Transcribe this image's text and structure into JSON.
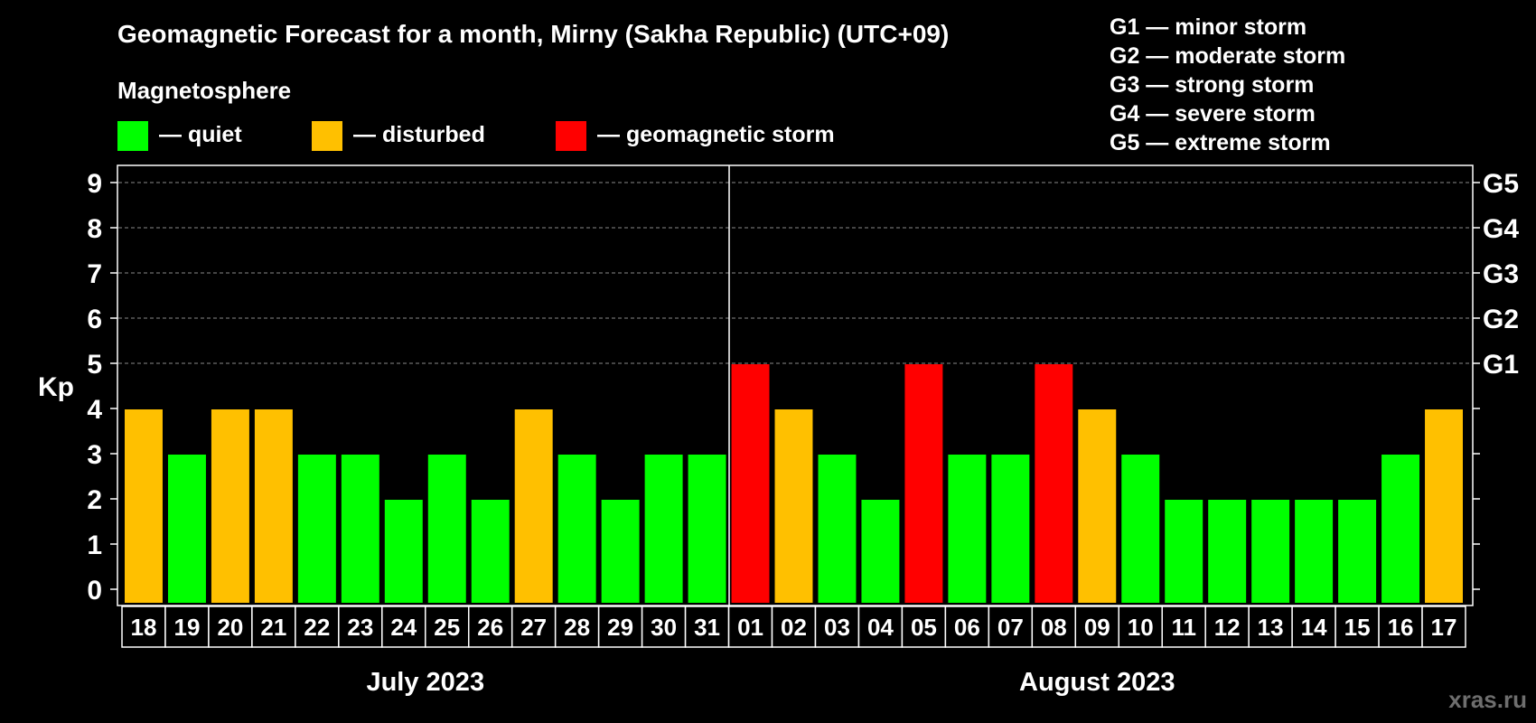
{
  "chart_data": {
    "type": "bar",
    "title": "Geomagnetic Forecast for a month, Mirny (Sakha Republic) (UTC+09)",
    "subtitle": "Magnetosphere",
    "ylabel": "Kp",
    "ylim": [
      0,
      9
    ],
    "yticks": [
      "0",
      "1",
      "2",
      "3",
      "4",
      "5",
      "6",
      "7",
      "8",
      "9"
    ],
    "right_axis_labels": [
      {
        "kp": 5,
        "label": "G1"
      },
      {
        "kp": 6,
        "label": "G2"
      },
      {
        "kp": 7,
        "label": "G3"
      },
      {
        "kp": 8,
        "label": "G4"
      },
      {
        "kp": 9,
        "label": "G5"
      }
    ],
    "categories": [
      "18",
      "19",
      "20",
      "21",
      "22",
      "23",
      "24",
      "25",
      "26",
      "27",
      "28",
      "29",
      "30",
      "31",
      "01",
      "02",
      "03",
      "04",
      "05",
      "06",
      "07",
      "08",
      "09",
      "10",
      "11",
      "12",
      "13",
      "14",
      "15",
      "16",
      "17"
    ],
    "values": [
      4,
      3,
      4,
      4,
      3,
      3,
      2,
      3,
      2,
      4,
      3,
      2,
      3,
      3,
      5,
      4,
      3,
      2,
      5,
      3,
      3,
      5,
      4,
      3,
      2,
      2,
      2,
      2,
      2,
      3,
      4
    ],
    "months": [
      {
        "label": "July 2023",
        "start": 0,
        "end": 13
      },
      {
        "label": "August 2023",
        "start": 14,
        "end": 30
      }
    ],
    "legend": [
      {
        "label": "— quiet",
        "color": "#00ff00"
      },
      {
        "label": "— disturbed",
        "color": "#ffc000"
      },
      {
        "label": "— geomagnetic storm",
        "color": "#ff0000"
      }
    ],
    "storm_scale": [
      "G1 — minor storm",
      "G2 — moderate storm",
      "G3 — strong storm",
      "G4 — severe storm",
      "G5 — extreme storm"
    ],
    "grid": true
  },
  "watermark": "xras.ru"
}
